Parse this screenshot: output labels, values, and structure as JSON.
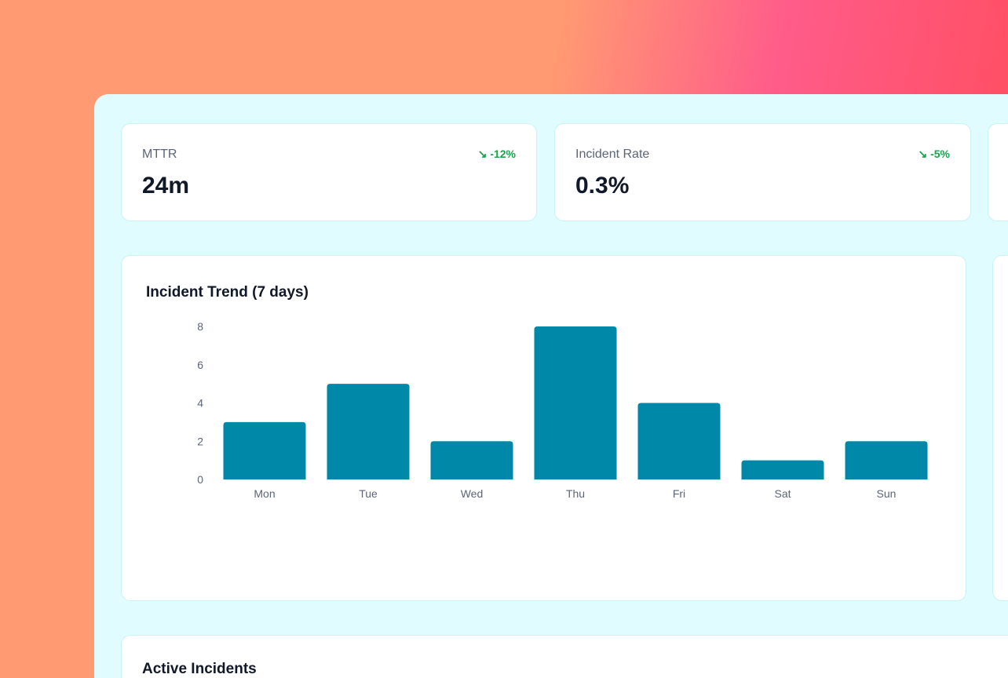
{
  "kpis": [
    {
      "label": "MTTR",
      "value": "24m",
      "delta": "-12%",
      "trend_icon": "trending-down-icon"
    },
    {
      "label": "Incident Rate",
      "value": "0.3%",
      "delta": "-5%",
      "trend_icon": "trending-down-icon"
    }
  ],
  "colors": {
    "bar": "#0088a9",
    "positive": "#16a34a",
    "panel": "#e1fcfe"
  },
  "chart_data": {
    "type": "bar",
    "title": "Incident Trend (7 days)",
    "categories": [
      "Mon",
      "Tue",
      "Wed",
      "Thu",
      "Fri",
      "Sat",
      "Sun"
    ],
    "values": [
      3,
      5,
      2,
      8,
      4,
      1,
      2
    ],
    "yticks": [
      0,
      2,
      4,
      6,
      8
    ],
    "ylim": [
      0,
      8
    ],
    "grid": false
  },
  "incidents": {
    "title": "Active Incidents"
  }
}
